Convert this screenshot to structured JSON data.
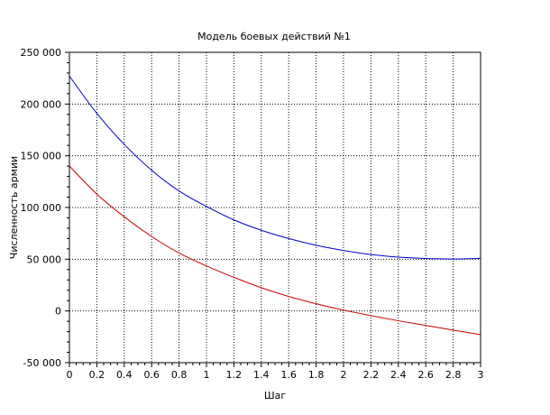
{
  "chart_data": {
    "type": "line",
    "title": "Модель боевых действий №1",
    "xlabel": "Шаг",
    "ylabel": "Численность армии",
    "xlim": [
      0,
      3
    ],
    "ylim": [
      -50000,
      250000
    ],
    "x_ticks": [
      0,
      0.2,
      0.4,
      0.6,
      0.8,
      1,
      1.2,
      1.4,
      1.6,
      1.8,
      2,
      2.2,
      2.4,
      2.6,
      2.8,
      3
    ],
    "x_tick_labels": [
      "0",
      "0.2",
      "0.4",
      "0.6",
      "0.8",
      "1",
      "1.2",
      "1.4",
      "1.6",
      "1.8",
      "2",
      "2.2",
      "2.4",
      "2.6",
      "2.8",
      "3"
    ],
    "y_ticks": [
      -50000,
      0,
      50000,
      100000,
      150000,
      200000,
      250000
    ],
    "y_tick_labels": [
      "-50 000",
      "0",
      "50 000",
      "100 000",
      "150 000",
      "200 000",
      "250 000"
    ],
    "grid": true,
    "series": [
      {
        "color": "#0000cc",
        "x": [
          0,
          0.2,
          0.4,
          0.6,
          0.8,
          1.0,
          1.2,
          1.4,
          1.6,
          1.8,
          2.0,
          2.2,
          2.4,
          2.6,
          2.8,
          3.0
        ],
        "y": [
          227000,
          191000,
          161000,
          136000,
          116000,
          101000,
          88000,
          78000,
          70000,
          63500,
          58500,
          54500,
          52000,
          50700,
          50200,
          50800
        ]
      },
      {
        "color": "#cc0000",
        "x": [
          0,
          0.2,
          0.4,
          0.6,
          0.8,
          1.0,
          1.2,
          1.4,
          1.6,
          1.8,
          2.0,
          2.2,
          2.4,
          2.6,
          2.8,
          3.0
        ],
        "y": [
          140000,
          113000,
          91000,
          72000,
          56000,
          43500,
          32500,
          22500,
          14000,
          7000,
          800,
          -4500,
          -9500,
          -14000,
          -18500,
          -23000
        ]
      }
    ]
  }
}
